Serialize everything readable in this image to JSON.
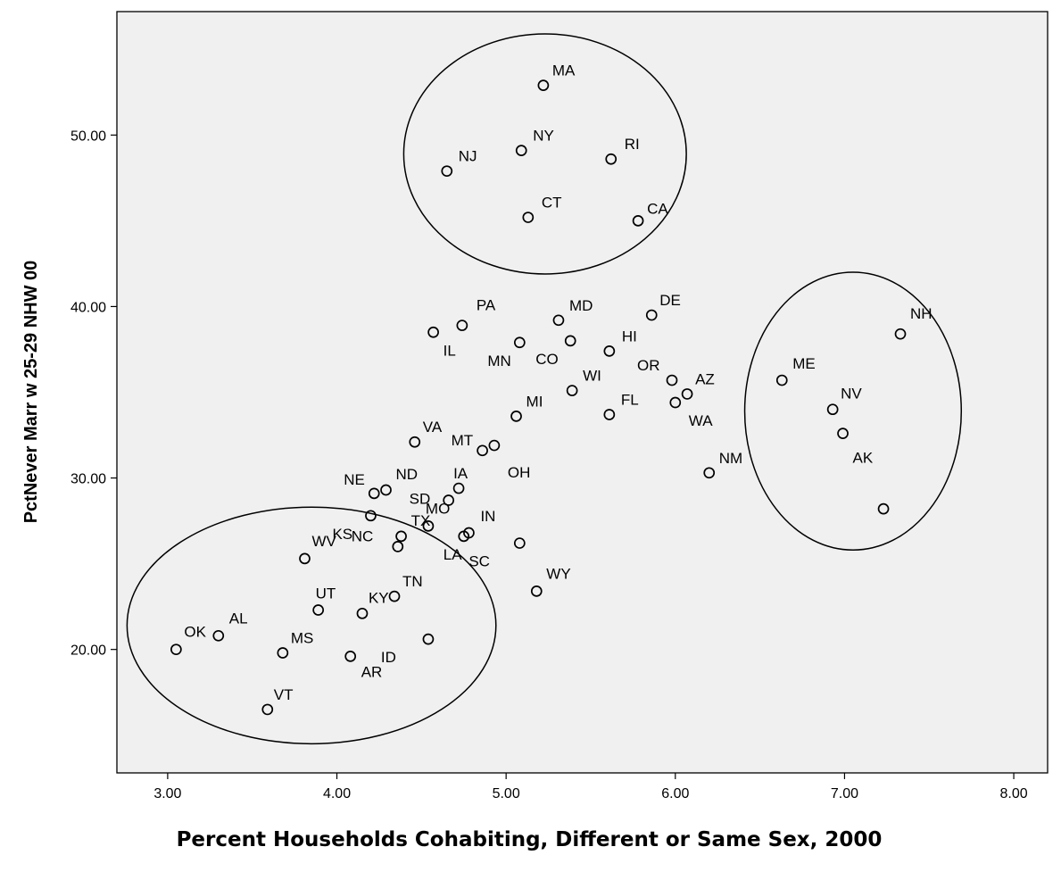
{
  "chart_data": {
    "type": "scatter",
    "title": "",
    "xlabel": "Percent Households Cohabiting, Different or Same Sex, 2000",
    "ylabel": "PctNever Marr w 25-29 NHW 00",
    "xlim": [
      2.7,
      8.2
    ],
    "ylim": [
      12.8,
      57.2
    ],
    "xticks": [
      "3.00",
      "4.00",
      "5.00",
      "6.00",
      "7.00",
      "8.00"
    ],
    "yticks": [
      "20.00",
      "30.00",
      "40.00",
      "50.00"
    ],
    "grid": false,
    "plot_background": "#f0f0f0",
    "marker": "open-circle",
    "points": [
      {
        "label": "MA",
        "x": 5.22,
        "y": 52.9
      },
      {
        "label": "NY",
        "x": 5.09,
        "y": 49.1
      },
      {
        "label": "NJ",
        "x": 4.65,
        "y": 47.9
      },
      {
        "label": "RI",
        "x": 5.62,
        "y": 48.6
      },
      {
        "label": "CT",
        "x": 5.13,
        "y": 45.2
      },
      {
        "label": "CA",
        "x": 5.78,
        "y": 45.0
      },
      {
        "label": "PA",
        "x": 4.74,
        "y": 38.9
      },
      {
        "label": "MD",
        "x": 5.31,
        "y": 39.2
      },
      {
        "label": "DE",
        "x": 5.86,
        "y": 39.5
      },
      {
        "label": "IL",
        "x": 4.57,
        "y": 38.5
      },
      {
        "label": "MN",
        "x": 5.08,
        "y": 37.9
      },
      {
        "label": "CO",
        "x": 5.38,
        "y": 38.0
      },
      {
        "label": "HI",
        "x": 5.61,
        "y": 37.4
      },
      {
        "label": "WI",
        "x": 5.39,
        "y": 35.1
      },
      {
        "label": "OR",
        "x": 5.98,
        "y": 35.7
      },
      {
        "label": "AZ",
        "x": 6.07,
        "y": 34.9
      },
      {
        "label": "WA",
        "x": 6.0,
        "y": 34.4
      },
      {
        "label": "FL",
        "x": 5.61,
        "y": 33.7
      },
      {
        "label": "MI",
        "x": 5.06,
        "y": 33.6
      },
      {
        "label": "VA",
        "x": 4.46,
        "y": 32.1
      },
      {
        "label": "MT",
        "x": 4.86,
        "y": 31.6
      },
      {
        "label": "OH",
        "x": 4.93,
        "y": 31.9
      },
      {
        "label": "NM",
        "x": 6.2,
        "y": 30.3
      },
      {
        "label": "NE",
        "x": 4.22,
        "y": 29.1
      },
      {
        "label": "ND",
        "x": 4.29,
        "y": 29.3
      },
      {
        "label": "IA",
        "x": 4.72,
        "y": 29.4
      },
      {
        "label": "SD",
        "x": 4.66,
        "y": 28.7
      },
      {
        "label": "KS",
        "x": 4.2,
        "y": 27.8
      },
      {
        "label": "MO",
        "x": 4.54,
        "y": 27.2
      },
      {
        "label": "TX",
        "x": 4.38,
        "y": 26.6
      },
      {
        "label": "IN",
        "x": 4.78,
        "y": 26.8
      },
      {
        "label": "NC",
        "x": 4.36,
        "y": 26.0
      },
      {
        "label": "LA",
        "x": 4.75,
        "y": 26.6
      },
      {
        "label": "SC",
        "x": 5.08,
        "y": 26.2
      },
      {
        "label": "WV",
        "x": 3.81,
        "y": 25.3
      },
      {
        "label": "WY",
        "x": 5.18,
        "y": 23.4
      },
      {
        "label": "TN",
        "x": 4.34,
        "y": 23.1
      },
      {
        "label": "UT",
        "x": 3.89,
        "y": 22.3
      },
      {
        "label": "KY",
        "x": 4.15,
        "y": 22.1
      },
      {
        "label": "AL",
        "x": 3.3,
        "y": 20.8
      },
      {
        "label": "OK",
        "x": 3.05,
        "y": 20.0
      },
      {
        "label": "ID",
        "x": 4.54,
        "y": 20.6
      },
      {
        "label": "MS",
        "x": 3.68,
        "y": 19.8
      },
      {
        "label": "AR",
        "x": 4.08,
        "y": 19.6
      },
      {
        "label": "VT",
        "x": 3.59,
        "y": 16.5
      },
      {
        "label": "NH",
        "x": 7.33,
        "y": 38.4
      },
      {
        "label": "ME",
        "x": 6.63,
        "y": 35.7
      },
      {
        "label": "NV",
        "x": 6.93,
        "y": 34.0
      },
      {
        "label": "AK",
        "x": 6.99,
        "y": 32.6
      },
      {
        "label": "",
        "x": 7.23,
        "y": 28.2
      }
    ],
    "label_text": [
      "MA",
      "NY",
      "NJ",
      "RI",
      "CT",
      "CA",
      "PA",
      "MD",
      "DE",
      "IL",
      "MN",
      "CO",
      "HI",
      "WI",
      "OR",
      "AZ",
      "WA",
      "FL",
      "MI",
      "VA",
      "MT",
      "OH",
      "NM",
      "NE",
      "ND",
      "IA",
      "SD",
      "KS",
      "MO",
      "TX",
      "IN",
      "NC",
      "LA",
      "SC",
      "WV",
      "WY",
      "TN",
      "UT",
      "KY",
      "AL",
      "OK",
      "ID",
      "MS",
      "AR",
      "VT",
      "NH",
      "ME",
      "NV",
      "AK"
    ],
    "annotations": [
      {
        "type": "ellipse",
        "cx": 5.23,
        "cy": 48.9,
        "rx": 0.835,
        "ry": 7.0
      },
      {
        "type": "ellipse",
        "cx": 7.05,
        "cy": 33.9,
        "rx": 0.64,
        "ry": 8.1
      },
      {
        "type": "ellipse",
        "cx": 3.85,
        "cy": 21.4,
        "rx": 1.09,
        "ry": 6.9
      }
    ]
  }
}
